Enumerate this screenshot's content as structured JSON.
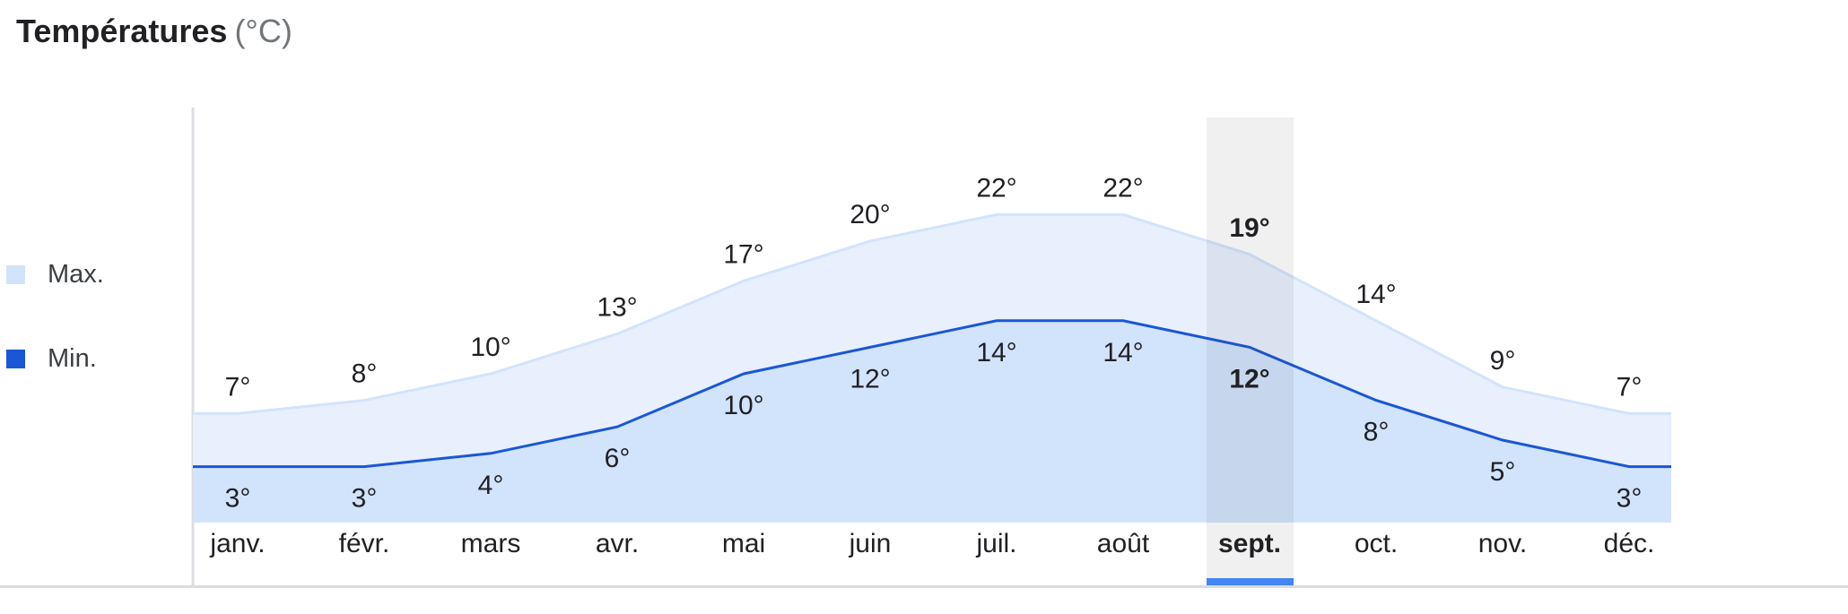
{
  "header": {
    "title": "Températures",
    "unit": "(°C)"
  },
  "legend": [
    {
      "label": "Max.",
      "color": "#d2e3fc"
    },
    {
      "label": "Min.",
      "color": "#1a57d6"
    }
  ],
  "selected_month": "sept.",
  "chart_data": {
    "type": "area",
    "categories": [
      "janv.",
      "févr.",
      "mars",
      "avr.",
      "mai",
      "juin",
      "juil.",
      "août",
      "sept.",
      "oct.",
      "nov.",
      "déc."
    ],
    "series": [
      {
        "name": "Max.",
        "values": [
          7,
          8,
          10,
          13,
          17,
          20,
          22,
          22,
          19,
          14,
          9,
          7
        ],
        "color": "#e8f0fe",
        "line_color": "#d2e3fc"
      },
      {
        "name": "Min.",
        "values": [
          3,
          3,
          4,
          6,
          10,
          12,
          14,
          14,
          12,
          8,
          5,
          3
        ],
        "color": "#d2e3fc",
        "line_color": "#1a57d6"
      }
    ],
    "value_suffix": "°",
    "legend_position": "left",
    "grid": false,
    "highlight_color": "#4285f4"
  }
}
